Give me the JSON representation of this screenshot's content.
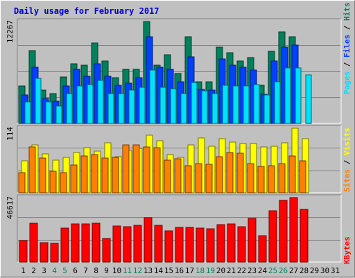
{
  "title": "Daily usage for February 2017",
  "colors": {
    "hits": "#00805c",
    "files": "#0040ff",
    "pages": "#00e0ff",
    "visits": "#ffff00",
    "sites": "#ff8000",
    "kbytes": "#ff0000",
    "weekend_day": "#00805c",
    "weekday": "#000000",
    "plot_background": "#c0c0c0",
    "gridline": "#808080"
  },
  "side_labels": {
    "top": [
      "Pages",
      "Files",
      "Hits"
    ],
    "middle": [
      "Sites",
      "Visits"
    ],
    "bottom": [
      "KBytes"
    ]
  },
  "chart_data": [
    {
      "type": "bar",
      "panel": "hits-files-pages",
      "max_label": "12267",
      "ylim": [
        0,
        12267
      ],
      "grid": true,
      "categories": [
        "1",
        "2",
        "3",
        "4",
        "5",
        "6",
        "7",
        "8",
        "9",
        "10",
        "11",
        "12",
        "13",
        "14",
        "15",
        "16",
        "17",
        "18",
        "19",
        "20",
        "21",
        "22",
        "23",
        "24",
        "25",
        "26",
        "27",
        "28",
        "29",
        "30",
        "31"
      ],
      "weekend_days": [
        "4",
        "5",
        "11",
        "12",
        "18",
        "19",
        "25",
        "26"
      ],
      "series": [
        {
          "name": "Hits",
          "key": "hits",
          "values": [
            4500,
            8800,
            4000,
            3600,
            5600,
            7200,
            7000,
            9700,
            7500,
            5500,
            6500,
            6500,
            12267,
            7000,
            8300,
            6000,
            10400,
            5000,
            5000,
            9200,
            8500,
            7500,
            7900,
            4600,
            8700,
            11000,
            10400,
            null,
            null,
            null,
            null
          ]
        },
        {
          "name": "Files",
          "key": "files",
          "values": [
            3400,
            6800,
            3000,
            2700,
            4500,
            6500,
            5700,
            7200,
            5700,
            4600,
            4800,
            5500,
            10400,
            6800,
            6500,
            5000,
            8000,
            4100,
            4000,
            7800,
            7000,
            6800,
            6400,
            3500,
            7500,
            9200,
            9400,
            null,
            null,
            null,
            null
          ]
        },
        {
          "name": "Pages",
          "key": "pages",
          "values": [
            2600,
            5400,
            2600,
            2100,
            3600,
            4500,
            4700,
            5200,
            3600,
            3600,
            4000,
            4300,
            6400,
            4300,
            4200,
            3600,
            4900,
            3900,
            3600,
            4600,
            4500,
            4500,
            4700,
            3400,
            5000,
            6700,
            6700,
            5800,
            null,
            null,
            null
          ]
        }
      ]
    },
    {
      "type": "bar",
      "panel": "visits-sites",
      "max_label": "114",
      "ylim": [
        0,
        114
      ],
      "grid": true,
      "categories": [
        "1",
        "2",
        "3",
        "4",
        "5",
        "6",
        "7",
        "8",
        "9",
        "10",
        "11",
        "12",
        "13",
        "14",
        "15",
        "16",
        "17",
        "18",
        "19",
        "20",
        "21",
        "22",
        "23",
        "24",
        "25",
        "26",
        "27",
        "28",
        "29",
        "30",
        "31"
      ],
      "series": [
        {
          "name": "Visits",
          "key": "visits",
          "values": [
            56,
            85,
            69,
            58,
            62,
            71,
            80,
            74,
            88,
            64,
            75,
            79,
            102,
            92,
            68,
            62,
            84,
            97,
            82,
            95,
            90,
            87,
            87,
            81,
            82,
            88,
            114,
            95,
            null,
            null,
            null
          ]
        },
        {
          "name": "Sites",
          "key": "sites",
          "values": [
            35,
            81,
            61,
            38,
            35,
            49,
            65,
            68,
            61,
            62,
            84,
            84,
            81,
            80,
            58,
            60,
            48,
            51,
            50,
            64,
            71,
            70,
            52,
            46,
            48,
            52,
            65,
            56,
            null,
            null,
            null
          ]
        }
      ]
    },
    {
      "type": "bar",
      "panel": "kbytes",
      "max_label": "46617",
      "ylim": [
        0,
        46617
      ],
      "grid": true,
      "categories": [
        "1",
        "2",
        "3",
        "4",
        "5",
        "6",
        "7",
        "8",
        "9",
        "10",
        "11",
        "12",
        "13",
        "14",
        "15",
        "16",
        "17",
        "18",
        "19",
        "20",
        "21",
        "22",
        "23",
        "24",
        "25",
        "26",
        "27",
        "28",
        "29",
        "30",
        "31"
      ],
      "series": [
        {
          "name": "KBytes",
          "key": "kbytes",
          "values": [
            15700,
            28000,
            13800,
            13300,
            24700,
            27700,
            27700,
            28200,
            16900,
            26200,
            25700,
            26700,
            32200,
            26500,
            22400,
            25000,
            25000,
            24700,
            24000,
            27000,
            27700,
            25400,
            31800,
            18900,
            37000,
            44500,
            46617,
            37900,
            null,
            null,
            null
          ]
        }
      ]
    }
  ]
}
